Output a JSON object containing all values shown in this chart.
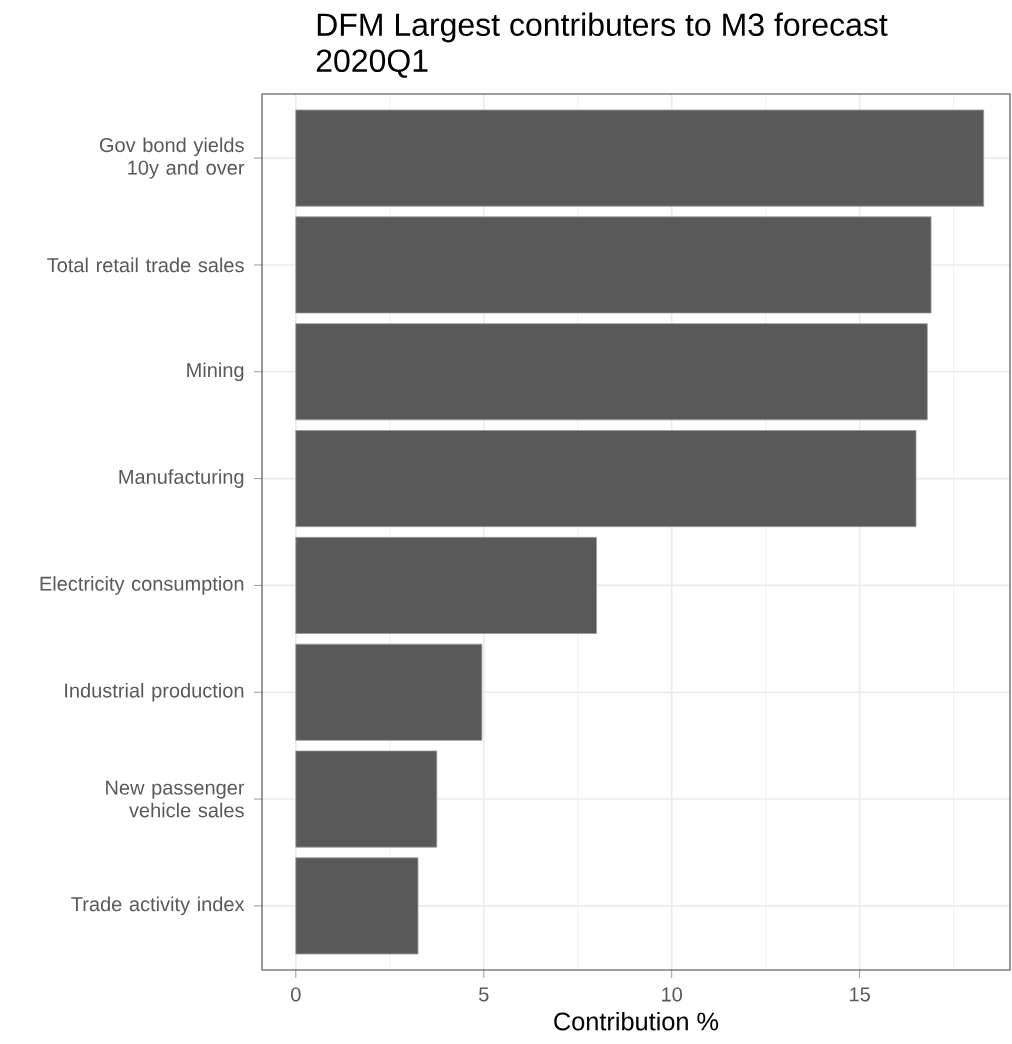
{
  "chart_data": {
    "type": "bar",
    "orientation": "horizontal",
    "title": "DFM Largest contributers to M3 forecast",
    "subtitle": "2020Q1",
    "xlabel": "Contribution %",
    "categories": [
      "Gov bond yields 10y and over",
      "Total retail trade sales",
      "Mining",
      "Manufacturing",
      "Electricity consumption",
      "Industrial production",
      "New passenger vehicle sales",
      "Trade activity index"
    ],
    "values": [
      18.3,
      16.9,
      16.8,
      16.5,
      8.0,
      4.95,
      3.75,
      3.25
    ],
    "color": "#595959",
    "xlim": [
      -0.9,
      19.0
    ],
    "xticks": [
      0,
      5,
      10,
      15
    ],
    "grid": true
  }
}
